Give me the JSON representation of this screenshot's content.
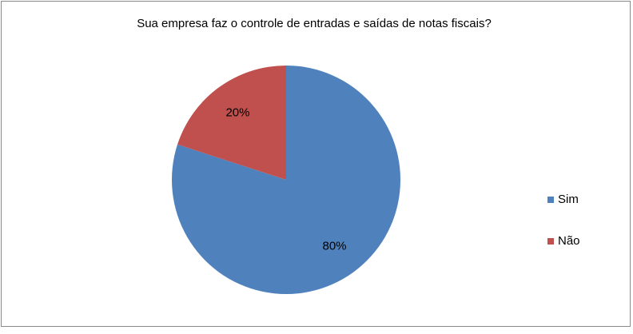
{
  "chart_data": {
    "type": "pie",
    "title": "Sua empresa faz o controle de entradas e saídas de notas fiscais?",
    "categories": [
      "Sim",
      "Não"
    ],
    "values": [
      80,
      20
    ],
    "value_labels": [
      "80%",
      "20%"
    ],
    "colors": [
      "#4f81bd",
      "#c0504d"
    ],
    "legend": "right"
  }
}
